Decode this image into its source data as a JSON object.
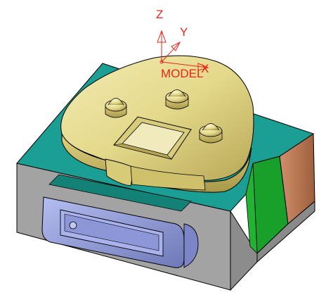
{
  "triad": {
    "z_label": "Z",
    "y_label": "Y",
    "x_label": "X",
    "workplane_label": "MODEL",
    "label_color": "#e8251c"
  },
  "colors": {
    "core_surface": "#e6dc8c",
    "block_top": "#1b9e93",
    "block_side": "#9e9e9e",
    "insert_blue": "#8f9ad8",
    "green_face": "#1aa12a",
    "brown_face": "#b7744f",
    "edge": "#000000"
  }
}
